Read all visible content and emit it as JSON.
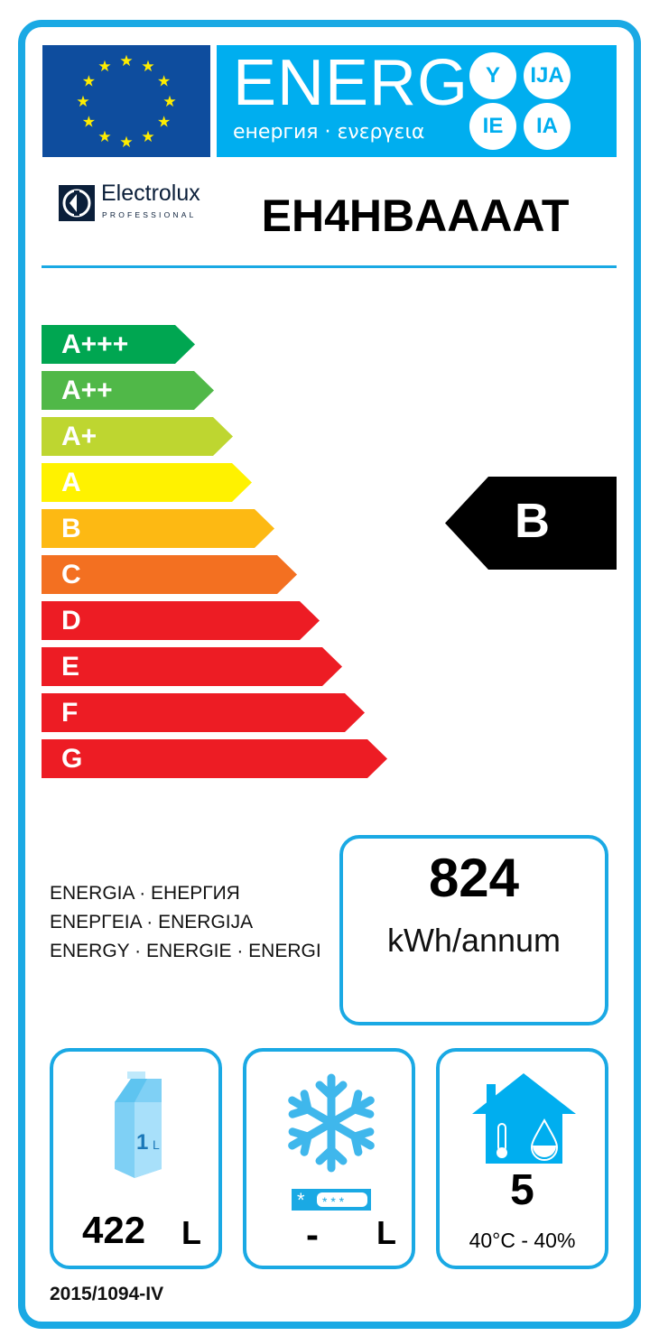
{
  "header": {
    "energy_word": "ENERG",
    "energy_sub": "енергия · ενεργεια",
    "suffixes": [
      "Y",
      "IJA",
      "IE",
      "IA"
    ],
    "flag_icon": "eu-flag-icon",
    "accent": "#00aeef"
  },
  "brand": {
    "name": "Electrolux",
    "sub": "PROFESSIONAL"
  },
  "model": "EH4HBAAAAT",
  "scale": [
    {
      "label": "A+++",
      "color": "#00a651"
    },
    {
      "label": "A++",
      "color": "#50b848"
    },
    {
      "label": "A+",
      "color": "#bed630"
    },
    {
      "label": "A",
      "color": "#fff200"
    },
    {
      "label": "B",
      "color": "#fdb913"
    },
    {
      "label": "C",
      "color": "#f37021"
    },
    {
      "label": "D",
      "color": "#ed1c24"
    },
    {
      "label": "E",
      "color": "#ed1c24"
    },
    {
      "label": "F",
      "color": "#ed1c24"
    },
    {
      "label": "G",
      "color": "#ed1c24"
    }
  ],
  "rating": "B",
  "energy": {
    "lines": [
      "ENERGIA · ЕНЕРГИЯ",
      "ΕΝΕΡΓΕΙΑ · ENERGIJA",
      "ENERGY · ENERGIE · ENERGI"
    ],
    "value": "824",
    "unit": "kWh/annum"
  },
  "chill": {
    "carton_text": "1",
    "carton_unit": "L",
    "value": "422",
    "unit": "L"
  },
  "freeze": {
    "value": "-",
    "unit": "L"
  },
  "climate": {
    "class": "5",
    "conditions": "40°C - 40%"
  },
  "footer": "2015/1094-IV"
}
